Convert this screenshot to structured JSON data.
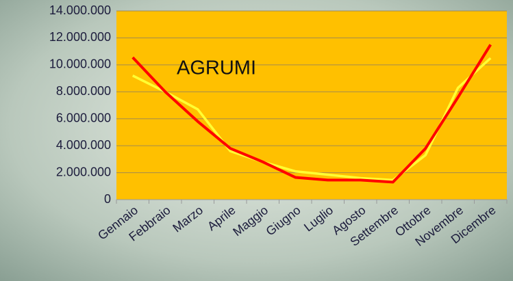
{
  "chart_data": {
    "type": "line",
    "annotation": "AGRUMI",
    "categories": [
      "Gennaio",
      "Febbraio",
      "Marzo",
      "Aprile",
      "Maggio",
      "Giugno",
      "Luglio",
      "Agosto",
      "Settembre",
      "Ottobre",
      "Novembre",
      "Dicembre"
    ],
    "series": [
      {
        "color": "#ffff33",
        "values": [
          9200000,
          8000000,
          6700000,
          3600000,
          2800000,
          2100000,
          1850000,
          1600000,
          1450000,
          3300000,
          8300000,
          10500000
        ]
      },
      {
        "color": "#ff0000",
        "values": [
          10550000,
          8000000,
          5800000,
          3800000,
          2800000,
          1650000,
          1450000,
          1450000,
          1300000,
          3800000,
          7600000,
          11500000
        ]
      }
    ],
    "ylim": [
      0,
      14000000
    ],
    "yticks": [
      0,
      {
        "value": 2000000,
        "label": "2.000.000"
      },
      {
        "value": 4000000,
        "label": "4.000.000"
      },
      {
        "value": 6000000,
        "label": "6.000.000"
      },
      {
        "value": 8000000,
        "label": "8.000.000"
      },
      {
        "value": 10000000,
        "label": "10.000.000"
      },
      {
        "value": 12000000,
        "label": "12.000.000"
      },
      {
        "value": 14000000,
        "label": "14.000.000"
      }
    ],
    "grid": true,
    "plot_color": "#ffc000"
  }
}
